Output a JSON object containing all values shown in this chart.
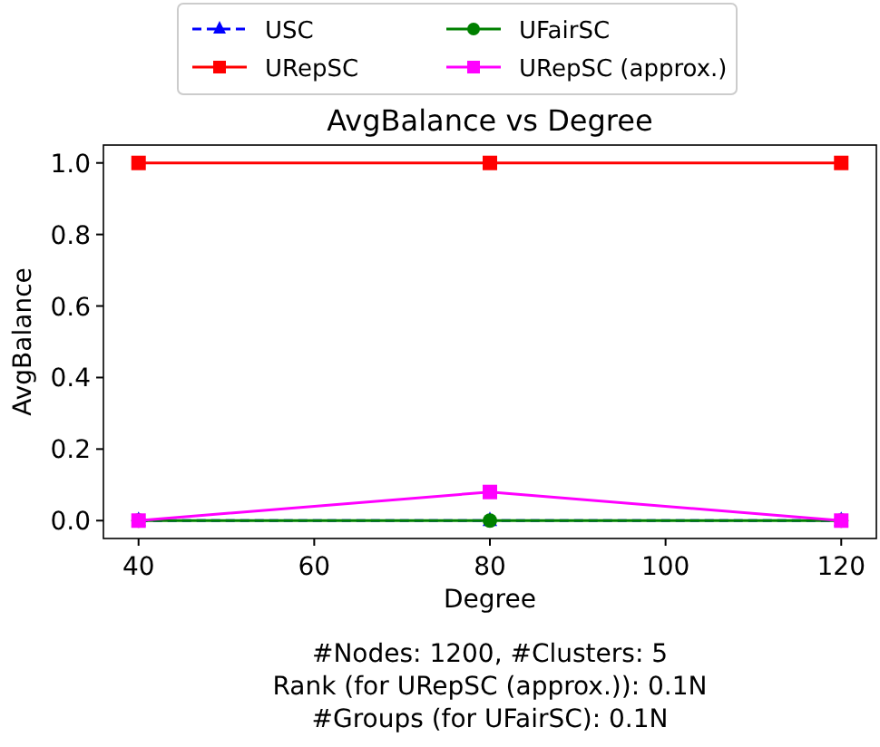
{
  "chart_data": {
    "type": "line",
    "title": "AvgBalance vs Degree",
    "xlabel": "Degree",
    "ylabel": "AvgBalance",
    "x": [
      40,
      80,
      120
    ],
    "series": [
      {
        "name": "USC",
        "color": "#0000ff",
        "values": [
          0,
          0,
          0
        ],
        "marker": "triangle",
        "line_style": "dashed"
      },
      {
        "name": "URepSC",
        "color": "#ff0000",
        "values": [
          1,
          1,
          1
        ],
        "marker": "square",
        "line_style": "solid"
      },
      {
        "name": "UFairSC",
        "color": "#008000",
        "values": [
          0,
          0,
          0
        ],
        "marker": "circle",
        "line_style": "solid"
      },
      {
        "name": "URepSC (approx.)",
        "color": "#ff00ff",
        "values": [
          0,
          0.08,
          0
        ],
        "errors": [
          0,
          0.015,
          0
        ],
        "marker": "square",
        "line_style": "solid"
      }
    ],
    "xlim": [
      36,
      124
    ],
    "xticks": [
      40,
      60,
      80,
      100,
      120
    ],
    "ylim": [
      -0.05,
      1.05
    ],
    "yticks": [
      {
        "value": 0,
        "label": "0.0"
      },
      0.2,
      0.4,
      0.6,
      0.8,
      {
        "value": 1,
        "label": "1.0"
      }
    ],
    "legend": "top",
    "grid": false,
    "annotations": [
      "#Nodes: 1200, #Clusters: 5",
      "Rank (for URepSC (approx.)): 0.1N",
      "#Groups (for UFairSC): 0.1N"
    ]
  }
}
